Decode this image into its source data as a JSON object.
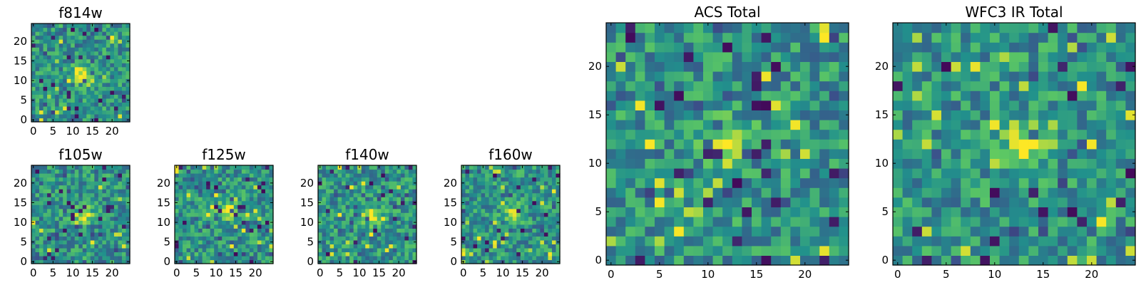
{
  "chart_data": [
    {
      "type": "heatmap",
      "title": "f814w",
      "grid_size": 25,
      "colormap": "viridis",
      "xlim": [
        0,
        24
      ],
      "ylim": [
        0,
        24
      ],
      "xticks": [
        "0",
        "5",
        "10",
        "15",
        "20"
      ],
      "yticks": [
        "0",
        "5",
        "10",
        "15",
        "20"
      ],
      "source": {
        "x": 12,
        "y": 12
      },
      "seed": 11
    },
    {
      "type": "heatmap",
      "title": "f105w",
      "grid_size": 25,
      "colormap": "viridis",
      "xlim": [
        0,
        24
      ],
      "ylim": [
        0,
        24
      ],
      "xticks": [
        "0",
        "5",
        "10",
        "15",
        "20"
      ],
      "yticks": [
        "0",
        "5",
        "10",
        "15",
        "20"
      ],
      "source": {
        "x": 13,
        "y": 12
      },
      "seed": 23
    },
    {
      "type": "heatmap",
      "title": "f125w",
      "grid_size": 25,
      "colormap": "viridis",
      "xlim": [
        0,
        24
      ],
      "ylim": [
        0,
        24
      ],
      "xticks": [
        "0",
        "5",
        "10",
        "15",
        "20"
      ],
      "yticks": [
        "0",
        "5",
        "10",
        "15",
        "20"
      ],
      "source": {
        "x": 13,
        "y": 13
      },
      "seed": 37
    },
    {
      "type": "heatmap",
      "title": "f140w",
      "grid_size": 25,
      "colormap": "viridis",
      "xlim": [
        0,
        24
      ],
      "ylim": [
        0,
        24
      ],
      "xticks": [
        "0",
        "5",
        "10",
        "15",
        "20"
      ],
      "yticks": [
        "0",
        "5",
        "10",
        "15",
        "20"
      ],
      "source": {
        "x": 13,
        "y": 12
      },
      "seed": 41
    },
    {
      "type": "heatmap",
      "title": "f160w",
      "grid_size": 25,
      "colormap": "viridis",
      "xlim": [
        0,
        24
      ],
      "ylim": [
        0,
        24
      ],
      "xticks": [
        "0",
        "5",
        "10",
        "15",
        "20"
      ],
      "yticks": [
        "0",
        "5",
        "10",
        "15",
        "20"
      ],
      "source": {
        "x": 13,
        "y": 12
      },
      "seed": 53
    },
    {
      "type": "heatmap",
      "title": "ACS Total",
      "grid_size": 25,
      "colormap": "viridis",
      "xlim": [
        0,
        24
      ],
      "ylim": [
        0,
        24
      ],
      "xticks": [
        "0",
        "5",
        "10",
        "15",
        "20"
      ],
      "yticks": [
        "0",
        "5",
        "10",
        "15",
        "20"
      ],
      "source": {
        "x": 12,
        "y": 12
      },
      "seed": 67
    },
    {
      "type": "heatmap",
      "title": "WFC3 IR Total",
      "grid_size": 25,
      "colormap": "viridis",
      "xlim": [
        0,
        24
      ],
      "ylim": [
        0,
        24
      ],
      "xticks": [
        "0",
        "5",
        "10",
        "15",
        "20"
      ],
      "yticks": [
        "0",
        "5",
        "10",
        "15",
        "20"
      ],
      "source": {
        "x": 13,
        "y": 12
      },
      "seed": 79
    }
  ]
}
